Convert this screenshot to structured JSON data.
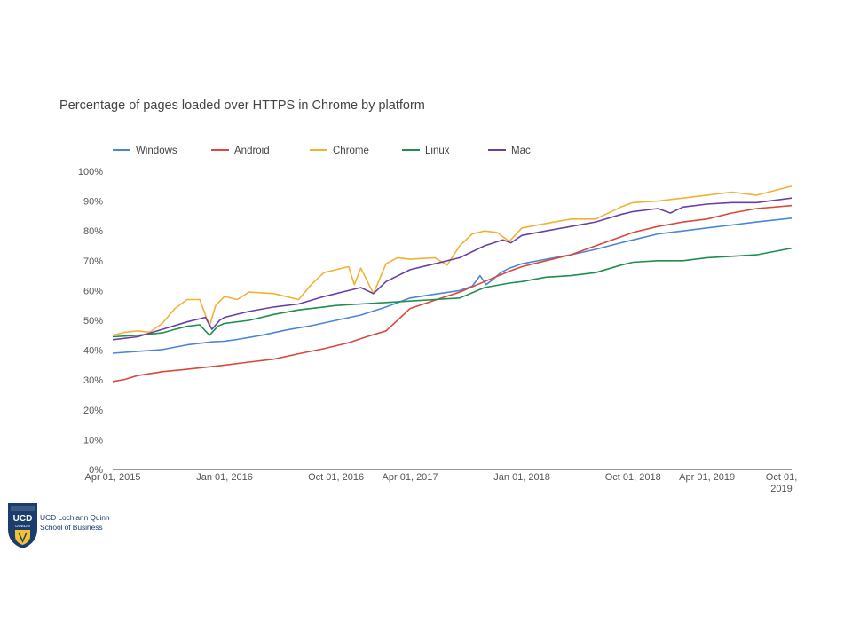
{
  "logo": {
    "lines": [
      "UCD Lochlann Quinn",
      "School of Business"
    ],
    "crest_text": [
      "UCD",
      "DUBLIN"
    ]
  },
  "chart_data": {
    "type": "line",
    "title": "Percentage of pages loaded over HTTPS in Chrome by platform",
    "xlabel": "",
    "ylabel": "",
    "x_range": [
      "2015-04-01",
      "2019-10-26"
    ],
    "ylim": [
      0,
      100
    ],
    "y_ticks": [
      "0%",
      "10%",
      "20%",
      "30%",
      "40%",
      "50%",
      "60%",
      "70%",
      "80%",
      "90%",
      "100%"
    ],
    "x_ticks": [
      {
        "date": "2015-04-01",
        "label": [
          "Apr 01, 2015"
        ]
      },
      {
        "date": "2016-01-01",
        "label": [
          "Jan 01, 2016"
        ]
      },
      {
        "date": "2016-10-01",
        "label": [
          "Oct 01, 2016"
        ]
      },
      {
        "date": "2017-04-01",
        "label": [
          "Apr 01, 2017"
        ]
      },
      {
        "date": "2018-01-01",
        "label": [
          "Jan 01, 2018"
        ]
      },
      {
        "date": "2018-10-01",
        "label": [
          "Oct 01, 2018"
        ]
      },
      {
        "date": "2019-04-01",
        "label": [
          "Apr 01, 2019"
        ]
      },
      {
        "date": "2019-10-01",
        "label": [
          "Oct 01,",
          "2019"
        ]
      }
    ],
    "grid": false,
    "legend_position": "top-left",
    "series": [
      {
        "name": "Windows",
        "color": "#4a86d8",
        "points": [
          [
            "2015-04-01",
            39
          ],
          [
            "2015-06-01",
            39.6
          ],
          [
            "2015-08-01",
            40.2
          ],
          [
            "2015-10-01",
            41.8
          ],
          [
            "2015-12-01",
            42.8
          ],
          [
            "2016-01-01",
            43
          ],
          [
            "2016-02-01",
            43.6
          ],
          [
            "2016-04-01",
            45
          ],
          [
            "2016-06-01",
            46.8
          ],
          [
            "2016-08-01",
            48.2
          ],
          [
            "2016-10-01",
            50
          ],
          [
            "2016-12-01",
            51.8
          ],
          [
            "2017-02-01",
            54.5
          ],
          [
            "2017-04-01",
            57.5
          ],
          [
            "2017-06-01",
            58.8
          ],
          [
            "2017-08-01",
            60
          ],
          [
            "2017-09-01",
            61.5
          ],
          [
            "2017-09-20",
            65
          ],
          [
            "2017-10-05",
            62
          ],
          [
            "2017-10-20",
            63.5
          ],
          [
            "2017-11-10",
            66
          ],
          [
            "2017-12-01",
            67.5
          ],
          [
            "2018-01-01",
            69
          ],
          [
            "2018-03-01",
            70.5
          ],
          [
            "2018-05-01",
            72
          ],
          [
            "2018-07-01",
            73.8
          ],
          [
            "2018-09-01",
            76
          ],
          [
            "2018-10-01",
            77
          ],
          [
            "2018-12-01",
            79
          ],
          [
            "2019-02-01",
            80
          ],
          [
            "2019-04-01",
            81
          ],
          [
            "2019-06-01",
            82
          ],
          [
            "2019-08-01",
            83
          ],
          [
            "2019-10-26",
            84.3
          ]
        ]
      },
      {
        "name": "Android",
        "color": "#d9483b",
        "points": [
          [
            "2015-04-01",
            29.5
          ],
          [
            "2015-05-01",
            30.2
          ],
          [
            "2015-06-01",
            31.5
          ],
          [
            "2015-08-01",
            32.8
          ],
          [
            "2015-10-01",
            33.6
          ],
          [
            "2015-12-01",
            34.5
          ],
          [
            "2016-01-01",
            35
          ],
          [
            "2016-03-01",
            36
          ],
          [
            "2016-05-01",
            37
          ],
          [
            "2016-07-01",
            38.8
          ],
          [
            "2016-09-01",
            40.5
          ],
          [
            "2016-11-01",
            42.5
          ],
          [
            "2016-12-15",
            44.5
          ],
          [
            "2017-02-01",
            46.5
          ],
          [
            "2017-03-01",
            50
          ],
          [
            "2017-04-01",
            54
          ],
          [
            "2017-06-01",
            56.8
          ],
          [
            "2017-08-01",
            59.5
          ],
          [
            "2017-10-01",
            63
          ],
          [
            "2017-12-01",
            66.5
          ],
          [
            "2018-01-01",
            68
          ],
          [
            "2018-03-01",
            70
          ],
          [
            "2018-05-01",
            72
          ],
          [
            "2018-07-01",
            75
          ],
          [
            "2018-09-01",
            78
          ],
          [
            "2018-10-01",
            79.5
          ],
          [
            "2018-12-01",
            81.5
          ],
          [
            "2019-02-01",
            83
          ],
          [
            "2019-04-01",
            84
          ],
          [
            "2019-06-01",
            86
          ],
          [
            "2019-08-01",
            87.5
          ],
          [
            "2019-10-26",
            88.5
          ]
        ]
      },
      {
        "name": "Chrome",
        "color": "#f2b134",
        "points": [
          [
            "2015-04-01",
            45
          ],
          [
            "2015-05-01",
            46
          ],
          [
            "2015-06-01",
            46.5
          ],
          [
            "2015-07-01",
            46
          ],
          [
            "2015-08-01",
            49
          ],
          [
            "2015-09-01",
            54
          ],
          [
            "2015-10-01",
            57
          ],
          [
            "2015-11-01",
            57
          ],
          [
            "2015-11-25",
            48
          ],
          [
            "2015-12-10",
            55
          ],
          [
            "2016-01-01",
            58
          ],
          [
            "2016-02-01",
            57
          ],
          [
            "2016-03-01",
            59.5
          ],
          [
            "2016-05-01",
            59
          ],
          [
            "2016-07-01",
            57
          ],
          [
            "2016-08-01",
            62
          ],
          [
            "2016-09-01",
            66
          ],
          [
            "2016-10-01",
            67
          ],
          [
            "2016-11-01",
            68
          ],
          [
            "2016-11-15",
            62
          ],
          [
            "2016-12-01",
            67.5
          ],
          [
            "2017-01-01",
            59
          ],
          [
            "2017-02-01",
            69
          ],
          [
            "2017-03-01",
            71
          ],
          [
            "2017-04-01",
            70.5
          ],
          [
            "2017-06-01",
            71
          ],
          [
            "2017-07-01",
            68.5
          ],
          [
            "2017-08-01",
            75
          ],
          [
            "2017-09-01",
            79
          ],
          [
            "2017-10-01",
            80
          ],
          [
            "2017-11-01",
            79.5
          ],
          [
            "2017-12-01",
            76.5
          ],
          [
            "2018-01-01",
            81
          ],
          [
            "2018-03-01",
            82.5
          ],
          [
            "2018-05-01",
            84
          ],
          [
            "2018-07-01",
            84
          ],
          [
            "2018-09-01",
            88
          ],
          [
            "2018-10-01",
            89.5
          ],
          [
            "2018-12-01",
            90
          ],
          [
            "2019-02-01",
            91
          ],
          [
            "2019-04-01",
            92
          ],
          [
            "2019-06-01",
            93
          ],
          [
            "2019-08-01",
            92
          ],
          [
            "2019-10-26",
            95
          ]
        ]
      },
      {
        "name": "Linux",
        "color": "#1f8e4e",
        "points": [
          [
            "2015-04-01",
            44.5
          ],
          [
            "2015-06-01",
            45
          ],
          [
            "2015-08-01",
            45.8
          ],
          [
            "2015-09-01",
            47
          ],
          [
            "2015-10-01",
            48
          ],
          [
            "2015-11-01",
            48.5
          ],
          [
            "2015-11-25",
            45
          ],
          [
            "2015-12-15",
            48
          ],
          [
            "2016-01-01",
            49
          ],
          [
            "2016-03-01",
            50
          ],
          [
            "2016-05-01",
            52
          ],
          [
            "2016-07-01",
            53.5
          ],
          [
            "2016-09-01",
            54.5
          ],
          [
            "2016-10-01",
            55
          ],
          [
            "2016-12-01",
            55.5
          ],
          [
            "2017-02-01",
            56
          ],
          [
            "2017-04-01",
            56.5
          ],
          [
            "2017-06-01",
            57
          ],
          [
            "2017-08-01",
            57.5
          ],
          [
            "2017-10-01",
            61
          ],
          [
            "2017-12-01",
            62.5
          ],
          [
            "2018-01-01",
            63
          ],
          [
            "2018-03-01",
            64.5
          ],
          [
            "2018-05-01",
            65
          ],
          [
            "2018-07-01",
            66
          ],
          [
            "2018-09-01",
            68.5
          ],
          [
            "2018-10-01",
            69.5
          ],
          [
            "2018-12-01",
            70
          ],
          [
            "2019-02-01",
            70
          ],
          [
            "2019-04-01",
            71
          ],
          [
            "2019-06-01",
            71.5
          ],
          [
            "2019-08-01",
            72
          ],
          [
            "2019-10-26",
            74.2
          ]
        ]
      },
      {
        "name": "Mac",
        "color": "#6a3fa5",
        "points": [
          [
            "2015-04-01",
            43.5
          ],
          [
            "2015-06-01",
            44.5
          ],
          [
            "2015-08-01",
            47
          ],
          [
            "2015-10-01",
            49.5
          ],
          [
            "2015-11-15",
            51
          ],
          [
            "2015-12-01",
            47
          ],
          [
            "2015-12-20",
            50
          ],
          [
            "2016-01-01",
            51
          ],
          [
            "2016-03-01",
            53
          ],
          [
            "2016-05-01",
            54.5
          ],
          [
            "2016-07-01",
            55.5
          ],
          [
            "2016-09-01",
            58
          ],
          [
            "2016-10-01",
            59
          ],
          [
            "2016-12-01",
            61
          ],
          [
            "2017-01-01",
            59
          ],
          [
            "2017-02-01",
            63
          ],
          [
            "2017-04-01",
            67
          ],
          [
            "2017-06-01",
            69
          ],
          [
            "2017-08-01",
            71
          ],
          [
            "2017-10-01",
            75
          ],
          [
            "2017-11-15",
            77
          ],
          [
            "2017-12-05",
            76
          ],
          [
            "2018-01-01",
            78.5
          ],
          [
            "2018-03-01",
            80
          ],
          [
            "2018-05-01",
            81.5
          ],
          [
            "2018-07-01",
            83
          ],
          [
            "2018-09-01",
            85.5
          ],
          [
            "2018-10-01",
            86.5
          ],
          [
            "2018-12-01",
            87.5
          ],
          [
            "2019-01-01",
            86
          ],
          [
            "2019-02-01",
            88
          ],
          [
            "2019-04-01",
            89
          ],
          [
            "2019-06-01",
            89.5
          ],
          [
            "2019-08-01",
            89.5
          ],
          [
            "2019-10-26",
            91
          ]
        ]
      }
    ]
  }
}
